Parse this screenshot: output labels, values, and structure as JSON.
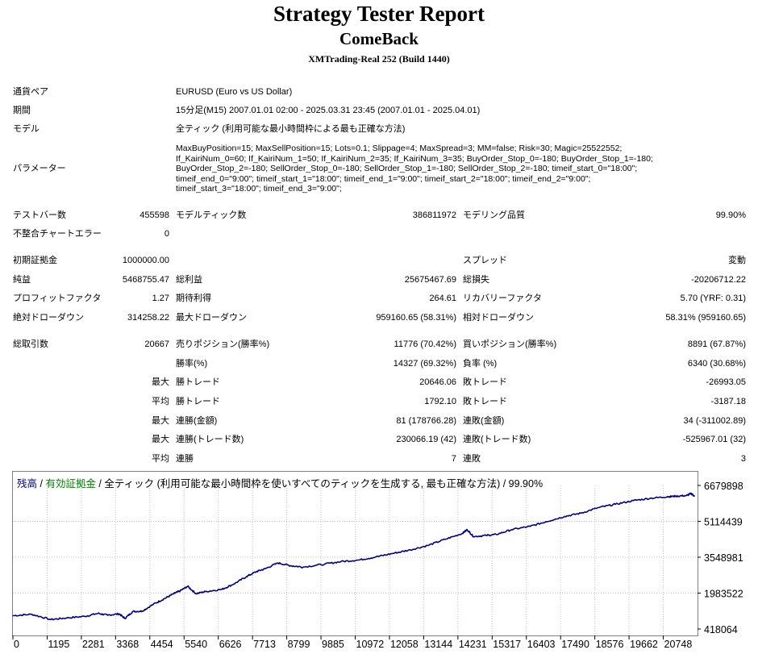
{
  "report": {
    "title": "Strategy Tester Report",
    "ea_name": "ComeBack",
    "server": "XMTrading-Real 252 (Build 1440)"
  },
  "info": {
    "symbol_label": "通貨ペア",
    "symbol_value": "EURUSD (Euro vs US Dollar)",
    "period_label": "期間",
    "period_value": "15分足(M15) 2007.01.01 02:00 - 2025.03.31 23:45 (2007.01.01 - 2025.04.01)",
    "model_label": "モデル",
    "model_value": "全ティック (利用可能な最小時間枠による最も正確な方法)",
    "params_label": "パラメーター",
    "params_lines": [
      "MaxBuyPosition=15; MaxSellPosition=15; Lots=0.1; Slippage=4; MaxSpread=3; MM=false; Risk=30; Magic=25522552;",
      "If_KairiNum_0=60; If_KairiNum_1=50; If_KairiNum_2=35; If_KairiNum_3=35; BuyOrder_Stop_0=-180; BuyOrder_Stop_1=-180;",
      "BuyOrder_Stop_2=-180; SellOrder_Stop_0=-180; SellOrder_Stop_1=-180; SellOrder_Stop_2=-180; timeif_start_0=\"18:00\";",
      "timeif_end_0=\"9:00\"; timeif_start_1=\"18:00\"; timeif_end_1=\"9:00\"; timeif_start_2=\"18:00\"; timeif_end_2=\"9:00\";",
      "timeif_start_3=\"18:00\"; timeif_end_3=\"9:00\";"
    ]
  },
  "stats": {
    "bars_label": "テストバー数",
    "bars_value": "455598",
    "ticks_label": "モデルティック数",
    "ticks_value": "386811972",
    "quality_label": "モデリング品質",
    "quality_value": "99.90%",
    "mismatch_label": "不整合チャートエラー",
    "mismatch_value": "0",
    "deposit_label": "初期証拠金",
    "deposit_value": "1000000.00",
    "spread_label": "スプレッド",
    "spread_value": "変動",
    "net_label": "純益",
    "net_value": "5468755.47",
    "gross_profit_label": "総利益",
    "gross_profit_value": "25675467.69",
    "gross_loss_label": "総損失",
    "gross_loss_value": "-20206712.22",
    "pf_label": "プロフィットファクタ",
    "pf_value": "1.27",
    "expected_label": "期待利得",
    "expected_value": "264.61",
    "recovery_label": "リカバリーファクタ",
    "recovery_value": "5.70 (YRF: 0.31)",
    "abs_dd_label": "絶対ドローダウン",
    "abs_dd_value": "314258.22",
    "max_dd_label": "最大ドローダウン",
    "max_dd_value": "959160.65 (58.31%)",
    "rel_dd_label": "相対ドローダウン",
    "rel_dd_value": "58.31% (959160.65)",
    "total_trades_label": "総取引数",
    "total_trades_value": "20667",
    "short_label": "売りポジション(勝率%)",
    "short_value": "11776 (70.42%)",
    "long_label": "買いポジション(勝率%)",
    "long_value": "8891 (67.87%)",
    "win_pct_label": "勝率(%)",
    "win_pct_value": "14327 (69.32%)",
    "loss_pct_label": "負率 (%)",
    "loss_pct_value": "6340 (30.68%)",
    "max_label": "最大",
    "avg_label": "平均",
    "largest_win_label": "勝トレード",
    "largest_win_value": "20646.06",
    "largest_loss_label": "敗トレード",
    "largest_loss_value": "-26993.05",
    "avg_win_label": "勝トレード",
    "avg_win_value": "1792.10",
    "avg_loss_label": "敗トレード",
    "avg_loss_value": "-3187.18",
    "max_consec_wins_amt_label": "連勝(金額)",
    "max_consec_wins_amt_value": "81 (178766.28)",
    "max_consec_losses_amt_label": "連敗(金額)",
    "max_consec_losses_amt_value": "34 (-311002.89)",
    "max_consec_profit_label": "連勝(トレード数)",
    "max_consec_profit_value": "230066.19 (42)",
    "max_consec_loss_label": "連敗(トレード数)",
    "max_consec_loss_value": "-525967.01 (32)",
    "avg_consec_wins_label": "連勝",
    "avg_consec_wins_value": "7",
    "avg_consec_losses_label": "連敗",
    "avg_consec_losses_value": "3"
  },
  "chart_data": {
    "type": "line",
    "legend": {
      "balance": "残高",
      "sep1": " / ",
      "equity": "有効証拠金",
      "sep2": " / ",
      "model": "全ティック (利用可能な最小時間枠を使いすべてのティックを生成する, 最も正確な方法)",
      "sep3": " / ",
      "quality": "99.90%"
    },
    "colors": {
      "balance": "#000080",
      "equity": "#008000",
      "text": "#000080",
      "grid": "#c0c0c0"
    },
    "x_ticks": [
      "0",
      "1195",
      "2281",
      "3368",
      "4454",
      "5540",
      "6626",
      "7713",
      "8799",
      "9885",
      "10972",
      "12058",
      "13144",
      "14231",
      "15317",
      "16403",
      "17490",
      "18576",
      "19662",
      "20748"
    ],
    "y_ticks": [
      "6679898",
      "5114439",
      "3548981",
      "1983522",
      "418064"
    ],
    "xlim": [
      0,
      21700
    ],
    "ylim": [
      418064,
      6679898
    ],
    "grid": true,
    "series": [
      {
        "values": [
          [
            0,
            1000000
          ],
          [
            600,
            1060000
          ],
          [
            1195,
            830000
          ],
          [
            1700,
            900000
          ],
          [
            2281,
            970000
          ],
          [
            2700,
            1100000
          ],
          [
            3000,
            1020000
          ],
          [
            3368,
            1080000
          ],
          [
            3550,
            880000
          ],
          [
            3800,
            1180000
          ],
          [
            4100,
            1200000
          ],
          [
            4454,
            1500000
          ],
          [
            4800,
            1740000
          ],
          [
            5100,
            1960000
          ],
          [
            5300,
            2080000
          ],
          [
            5540,
            2280000
          ],
          [
            5800,
            1960000
          ],
          [
            6100,
            2050000
          ],
          [
            6626,
            2150000
          ],
          [
            7000,
            2380000
          ],
          [
            7400,
            2700000
          ],
          [
            7713,
            2920000
          ],
          [
            8000,
            3050000
          ],
          [
            8400,
            3300000
          ],
          [
            8799,
            3180000
          ],
          [
            9200,
            3120000
          ],
          [
            9885,
            3250000
          ],
          [
            10400,
            3360000
          ],
          [
            10972,
            3430000
          ],
          [
            11500,
            3560000
          ],
          [
            12058,
            3720000
          ],
          [
            12600,
            3870000
          ],
          [
            13144,
            4060000
          ],
          [
            13700,
            4330000
          ],
          [
            14231,
            4580000
          ],
          [
            14400,
            4750000
          ],
          [
            14600,
            4450000
          ],
          [
            15000,
            4500000
          ],
          [
            15317,
            4540000
          ],
          [
            15800,
            4750000
          ],
          [
            16403,
            4900000
          ],
          [
            16900,
            5100000
          ],
          [
            17490,
            5330000
          ],
          [
            18000,
            5470000
          ],
          [
            18576,
            5720000
          ],
          [
            19100,
            5860000
          ],
          [
            19662,
            6020000
          ],
          [
            20200,
            6120000
          ],
          [
            20748,
            6190000
          ],
          [
            21000,
            6210000
          ],
          [
            21350,
            6240000
          ],
          [
            21500,
            6330000
          ],
          [
            21600,
            6210000
          ]
        ]
      }
    ]
  }
}
